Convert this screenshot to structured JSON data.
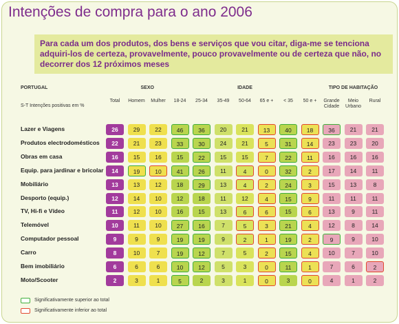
{
  "title": "Intenções de compra para o ano 2006",
  "question": "Para cada um dos produtos, dos bens e serviços que vou citar, diga-me se tenciona adquiri-los de certeza, provavelmente, pouco provavelmente ou de certeza que não, no decorrer dos 12 próximos meses",
  "table": {
    "measure_label": "S-T Intenções positivas em %",
    "groups": [
      {
        "label": "PORTUGAL",
        "columns": [
          "Total"
        ],
        "colors": [
          "#a23b9c"
        ]
      },
      {
        "label": "SEXO",
        "columns": [
          "Homem",
          "Mulher"
        ],
        "colors": [
          "#efe04e",
          "#efe04e"
        ]
      },
      {
        "label": "IDADE",
        "columns": [
          "18-24",
          "25-34",
          "35-49",
          "50-64",
          "65 e +",
          "< 35",
          "50 e +"
        ],
        "colors": [
          "#b9d54e",
          "#b9d54e",
          "#cfe06a",
          "#d9e35c",
          "#ece155",
          "#b9d54e",
          "#ece155"
        ]
      },
      {
        "label": "TIPO DE HABITAÇÃO",
        "columns": [
          "Grande Cidade",
          "Meio Urbano",
          "Rural"
        ],
        "colors": [
          "#e8a7b9",
          "#e8a7b9",
          "#e8a7b9"
        ]
      }
    ],
    "rows": [
      {
        "label": "Lazer e Viagens",
        "values": [
          26,
          29,
          22,
          46,
          36,
          20,
          21,
          13,
          40,
          18,
          36,
          21,
          21
        ],
        "above": [
          3,
          4,
          8,
          10
        ],
        "below": [
          7,
          9
        ]
      },
      {
        "label": "Produtos electrodomésticos",
        "values": [
          22,
          21,
          23,
          33,
          30,
          24,
          21,
          5,
          31,
          14,
          23,
          23,
          20
        ],
        "above": [
          3,
          4,
          8
        ],
        "below": [
          7,
          9
        ]
      },
      {
        "label": "Obras em casa",
        "values": [
          16,
          15,
          16,
          15,
          22,
          15,
          15,
          7,
          22,
          11,
          16,
          16,
          16
        ],
        "above": [
          4,
          8
        ],
        "below": [
          7,
          9
        ]
      },
      {
        "label": "Equip. para jardinar e bricolar",
        "values": [
          14,
          19,
          10,
          41,
          26,
          11,
          4,
          0,
          32,
          2,
          17,
          14,
          11
        ],
        "above": [
          1,
          3,
          4,
          8
        ],
        "below": [
          2,
          6,
          7,
          9
        ]
      },
      {
        "label": "Mobiliário",
        "values": [
          13,
          13,
          12,
          18,
          29,
          13,
          4,
          2,
          24,
          3,
          15,
          13,
          8
        ],
        "above": [
          4,
          8
        ],
        "below": [
          6,
          7,
          9
        ]
      },
      {
        "label": "Desporto (equip.)",
        "values": [
          12,
          14,
          10,
          12,
          18,
          11,
          12,
          4,
          15,
          9,
          11,
          11,
          11
        ],
        "above": [
          8
        ],
        "below": [
          7,
          9
        ]
      },
      {
        "label": "TV, Hi-fi e Vídeo",
        "values": [
          11,
          12,
          10,
          16,
          15,
          13,
          6,
          6,
          15,
          6,
          13,
          9,
          11
        ],
        "above": [],
        "below": [
          6,
          7,
          9
        ]
      },
      {
        "label": "Telemóvel",
        "values": [
          10,
          11,
          10,
          27,
          16,
          7,
          5,
          3,
          21,
          4,
          12,
          8,
          14
        ],
        "above": [
          3,
          4,
          8
        ],
        "below": [
          6,
          7,
          9
        ]
      },
      {
        "label": "Computador pessoal",
        "values": [
          9,
          9,
          9,
          19,
          19,
          9,
          2,
          1,
          19,
          2,
          9,
          9,
          10
        ],
        "above": [
          3,
          4,
          8,
          10
        ],
        "below": [
          6,
          7,
          9
        ]
      },
      {
        "label": "Carro",
        "values": [
          8,
          10,
          7,
          19,
          12,
          7,
          5,
          2,
          15,
          4,
          10,
          7,
          10
        ],
        "above": [
          3,
          4,
          8
        ],
        "below": [
          7,
          9
        ]
      },
      {
        "label": "Bem imobiliário",
        "values": [
          6,
          6,
          6,
          10,
          12,
          5,
          3,
          0,
          11,
          1,
          7,
          6,
          2
        ],
        "above": [
          3,
          4,
          8
        ],
        "below": [
          7,
          9,
          12
        ]
      },
      {
        "label": "Moto/Scooter",
        "values": [
          2,
          3,
          1,
          5,
          2,
          3,
          1,
          0,
          3,
          0,
          4,
          1,
          2
        ],
        "above": [
          3
        ],
        "below": [
          7,
          9
        ]
      }
    ]
  },
  "legend": {
    "above": {
      "label": "Significativamente superior ao total",
      "color": "#3fae3a"
    },
    "below": {
      "label": "Significativamente inferior ao total",
      "color": "#e2472f"
    }
  }
}
